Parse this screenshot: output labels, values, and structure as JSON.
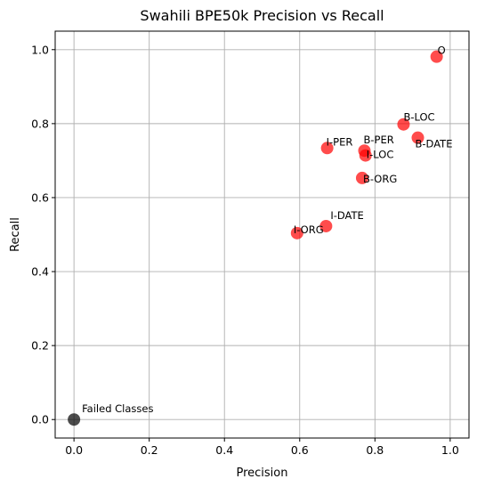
{
  "chart_data": {
    "type": "scatter",
    "title": "Swahili BPE50k Precision vs Recall",
    "xlabel": "Precision",
    "ylabel": "Recall",
    "xlim": [
      -0.05,
      1.05
    ],
    "ylim": [
      -0.05,
      1.05
    ],
    "grid": true,
    "xticks": [
      0.0,
      0.2,
      0.4,
      0.6,
      0.8,
      1.0
    ],
    "yticks": [
      0.0,
      0.2,
      0.4,
      0.6,
      0.8,
      1.0
    ],
    "xtick_labels": [
      "0.0",
      "0.2",
      "0.4",
      "0.6",
      "0.8",
      "1.0"
    ],
    "ytick_labels": [
      "0.0",
      "0.2",
      "0.4",
      "0.6",
      "0.8",
      "1.0"
    ],
    "series": [
      {
        "name": "classes",
        "color": "#ff0000",
        "points": [
          {
            "label": "O",
            "x": 0.964,
            "y": 0.981
          },
          {
            "label": "B-LOC",
            "x": 0.876,
            "y": 0.798
          },
          {
            "label": "B-DATE",
            "x": 0.914,
            "y": 0.762
          },
          {
            "label": "I-PER",
            "x": 0.673,
            "y": 0.734
          },
          {
            "label": "B-PER",
            "x": 0.772,
            "y": 0.727
          },
          {
            "label": "I-LOC",
            "x": 0.775,
            "y": 0.714
          },
          {
            "label": "B-ORG",
            "x": 0.766,
            "y": 0.653
          },
          {
            "label": "I-DATE",
            "x": 0.67,
            "y": 0.523
          },
          {
            "label": "I-ORG",
            "x": 0.593,
            "y": 0.504
          }
        ]
      },
      {
        "name": "failed",
        "color": "#000000",
        "points": [
          {
            "label": "Failed Classes",
            "x": 0.0,
            "y": 0.0
          }
        ]
      }
    ]
  }
}
